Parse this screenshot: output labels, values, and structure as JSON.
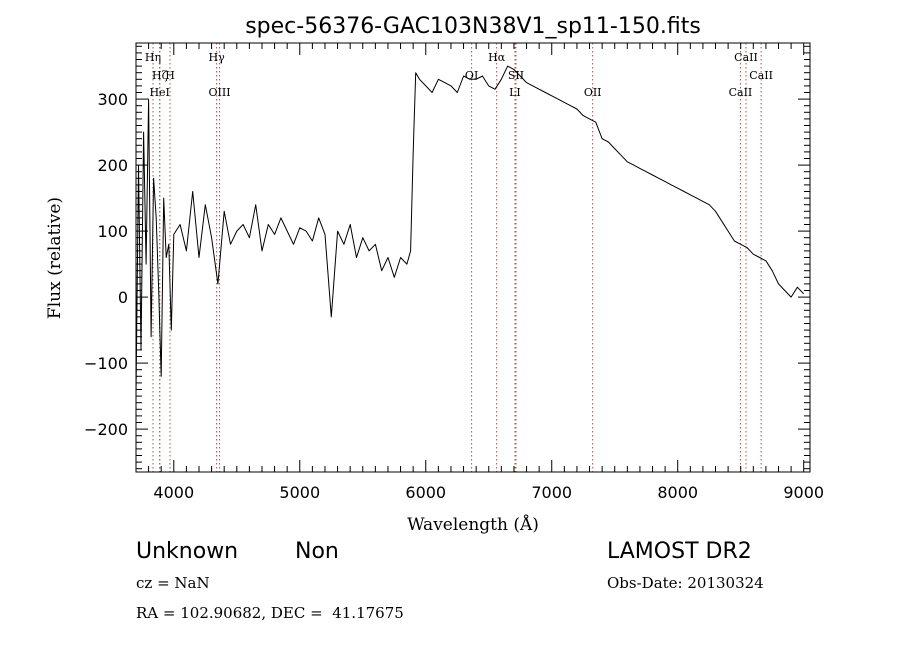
{
  "chart_data": {
    "type": "line",
    "title": "spec-56376-GAC103N38V1_sp11-150.fits",
    "xlabel": "Wavelength (Å)",
    "ylabel": "Flux (relative)",
    "xlim": [
      3700,
      9050
    ],
    "ylim": [
      -265,
      385
    ],
    "x_ticks": [
      4000,
      5000,
      6000,
      7000,
      8000,
      9000
    ],
    "y_ticks": [
      -200,
      -100,
      0,
      100,
      200,
      300
    ],
    "grid": false,
    "series": [
      {
        "x": [
          3700,
          3720,
          3740,
          3760,
          3780,
          3800,
          3820,
          3840,
          3860,
          3880,
          3900,
          3920,
          3940,
          3960,
          3980,
          4000,
          4050,
          4100,
          4150,
          4200,
          4250,
          4300,
          4350,
          4400,
          4450,
          4500,
          4550,
          4600,
          4650,
          4700,
          4750,
          4800,
          4850,
          4900,
          4950,
          5000,
          5050,
          5100,
          5150,
          5200,
          5250,
          5300,
          5350,
          5400,
          5450,
          5500,
          5550,
          5600,
          5650,
          5700,
          5750,
          5800,
          5850,
          5880,
          5900,
          5920,
          5950,
          6000,
          6050,
          6100,
          6150,
          6200,
          6250,
          6300,
          6350,
          6400,
          6450,
          6500,
          6550,
          6600,
          6650,
          6700,
          6750,
          6800,
          6850,
          6900,
          6950,
          7000,
          7050,
          7100,
          7150,
          7200,
          7250,
          7300,
          7350,
          7400,
          7450,
          7500,
          7550,
          7600,
          7650,
          7700,
          7750,
          7800,
          7850,
          7900,
          7950,
          8000,
          8050,
          8100,
          8150,
          8200,
          8250,
          8300,
          8350,
          8400,
          8450,
          8500,
          8550,
          8600,
          8650,
          8700,
          8750,
          8800,
          8850,
          8900,
          8950,
          9000
        ],
        "y": [
          -150,
          200,
          -80,
          250,
          50,
          300,
          -60,
          180,
          120,
          10,
          -120,
          150,
          60,
          80,
          -50,
          95,
          110,
          70,
          160,
          60,
          140,
          90,
          20,
          130,
          80,
          100,
          110,
          90,
          140,
          70,
          110,
          95,
          120,
          100,
          80,
          105,
          100,
          85,
          120,
          95,
          -30,
          100,
          80,
          110,
          60,
          90,
          70,
          80,
          40,
          60,
          30,
          60,
          50,
          70,
          220,
          340,
          330,
          320,
          310,
          330,
          325,
          320,
          310,
          335,
          330,
          330,
          335,
          320,
          315,
          330,
          350,
          345,
          335,
          325,
          320,
          315,
          310,
          305,
          300,
          295,
          290,
          285,
          275,
          270,
          265,
          240,
          235,
          225,
          215,
          205,
          200,
          195,
          190,
          185,
          180,
          175,
          170,
          165,
          160,
          155,
          150,
          145,
          140,
          130,
          115,
          100,
          85,
          80,
          75,
          65,
          60,
          55,
          40,
          20,
          10,
          0,
          15,
          5
        ]
      }
    ],
    "line_markers": [
      {
        "label": "Hη",
        "x": 3835,
        "row": 0
      },
      {
        "label": "Hζ",
        "x": 3889,
        "row": 1
      },
      {
        "label": "H",
        "x": 3970,
        "row": 1
      },
      {
        "label": "HeI",
        "x": 3888,
        "row": 2
      },
      {
        "label": "Hγ",
        "x": 4340,
        "row": 0
      },
      {
        "label": "OIII",
        "x": 4363,
        "row": 2
      },
      {
        "label": "OI",
        "x": 6364,
        "row": 1
      },
      {
        "label": "Hα",
        "x": 6563,
        "row": 0
      },
      {
        "label": "SII",
        "x": 6716,
        "row": 1
      },
      {
        "label": "LI",
        "x": 6708,
        "row": 2
      },
      {
        "label": "OII",
        "x": 7325,
        "row": 2
      },
      {
        "label": "CaII",
        "x": 8542,
        "row": 0
      },
      {
        "label": "CaII",
        "x": 8662,
        "row": 1
      },
      {
        "label": "CaII",
        "x": 8498,
        "row": 2
      }
    ]
  },
  "footer": {
    "object_class": "Unknown",
    "subclass": "Non",
    "redshift_line": "cz = NaN",
    "coords_line": "RA = 102.90682, DEC =  41.17675",
    "survey": "LAMOST DR2",
    "obs_date_line": "Obs-Date: 20130324"
  }
}
